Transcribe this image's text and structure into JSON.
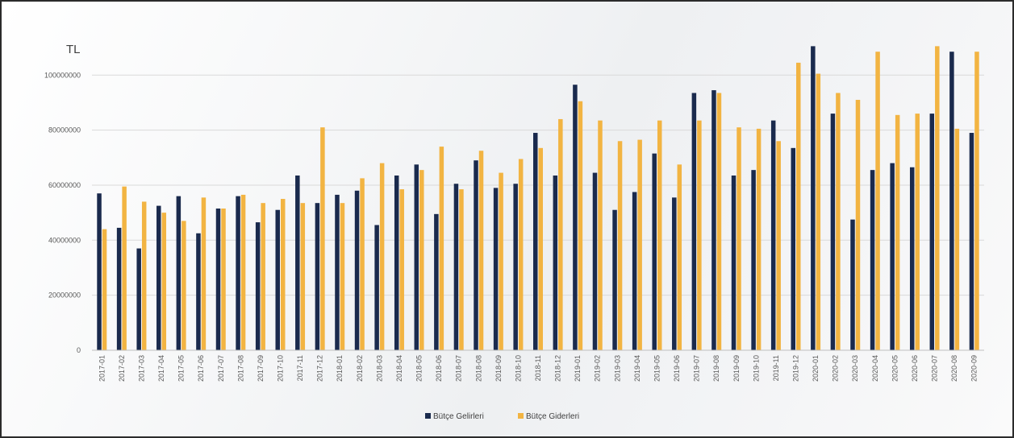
{
  "chart_data": {
    "type": "bar",
    "unit_label": "TL",
    "categories": [
      "2017-01",
      "2017-02",
      "2017-03",
      "2017-04",
      "2017-05",
      "2017-06",
      "2017-07",
      "2017-08",
      "2017-09",
      "2017-10",
      "2017-11",
      "2017-12",
      "2018-01",
      "2018-02",
      "2018-03",
      "2018-04",
      "2018-05",
      "2018-06",
      "2018-07",
      "2018-08",
      "2018-09",
      "2018-10",
      "2018-11",
      "2018-12",
      "2019-01",
      "2019-02",
      "2019-03",
      "2019-04",
      "2019-05",
      "2019-06",
      "2019-07",
      "2019-08",
      "2019-09",
      "2019-10",
      "2019-11",
      "2019-12",
      "2020-01",
      "2020-02",
      "2020-03",
      "2020-04",
      "2020-05",
      "2020-06",
      "2020-07",
      "2020-08",
      "2020-09"
    ],
    "series": [
      {
        "name": "Bütçe Gelirleri",
        "color": "#1a2a4d",
        "values": [
          57000000,
          44500000,
          37000000,
          52500000,
          56000000,
          42500000,
          51500000,
          56000000,
          46500000,
          51000000,
          63500000,
          53500000,
          56500000,
          58000000,
          45500000,
          63500000,
          67500000,
          49500000,
          60500000,
          69000000,
          59000000,
          60500000,
          79000000,
          63500000,
          96500000,
          64500000,
          51000000,
          57500000,
          71500000,
          55500000,
          93500000,
          94500000,
          63500000,
          65500000,
          83500000,
          73500000,
          110500000,
          86000000,
          47500000,
          65500000,
          68000000,
          66500000,
          86000000,
          108500000,
          79000000
        ]
      },
      {
        "name": "Bütçe Giderleri",
        "color": "#f2b442",
        "values": [
          44000000,
          59500000,
          54000000,
          50000000,
          47000000,
          55500000,
          51500000,
          56500000,
          53500000,
          55000000,
          53500000,
          81000000,
          53500000,
          62500000,
          68000000,
          58500000,
          65500000,
          74000000,
          58500000,
          72500000,
          64500000,
          69500000,
          73500000,
          84000000,
          90500000,
          83500000,
          76000000,
          76500000,
          83500000,
          67500000,
          83500000,
          93500000,
          81000000,
          80500000,
          76000000,
          104500000,
          100500000,
          93500000,
          91000000,
          108500000,
          85500000,
          86000000,
          110500000,
          80500000,
          108500000
        ]
      }
    ],
    "ylim": [
      0,
      115000000
    ],
    "yticks": [
      0,
      20000000,
      40000000,
      60000000,
      80000000,
      100000000
    ],
    "ytick_labels": [
      "0",
      "20000000",
      "40000000",
      "60000000",
      "80000000",
      "100000000"
    ],
    "grid": true,
    "legend_position": "bottom-center"
  }
}
